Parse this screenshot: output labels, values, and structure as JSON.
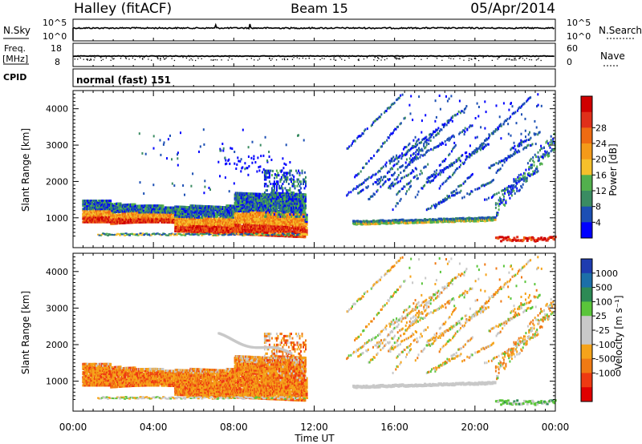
{
  "header": {
    "site": "Halley (fitACF)",
    "beam": "Beam 15",
    "date": "05/Apr/2014"
  },
  "strips": {
    "nsky_label": "N.Sky",
    "nsky_ticks": [
      "10^5",
      "10^0"
    ],
    "nsearch_label": "N.Search",
    "nsearch_ticks": [
      "10^5",
      "10^0"
    ],
    "freq_label": "Freq.",
    "freq_unit": "[MHz]",
    "freq_ticks": [
      "18",
      "8"
    ],
    "nave_label": "Nave",
    "nave_ticks": [
      "60",
      "0"
    ],
    "cpid_label": "CPID",
    "cpid_value": "normal (fast) 151"
  },
  "colors": {
    "power_scale": [
      "#0000ff",
      "#1c4fb4",
      "#3a8c62",
      "#52b04d",
      "#f6c02b",
      "#f49a19",
      "#ef6b12",
      "#e0301a",
      "#d00000"
    ],
    "velocity_scale": [
      "#1e3cb0",
      "#1c6fa8",
      "#2d8a55",
      "#5ac53a",
      "#c8c8c8",
      "#c8c8c8",
      "#f5a31a",
      "#f07a14",
      "#ee3a12",
      "#e00000"
    ]
  },
  "chart_data": [
    {
      "type": "heatmap",
      "title": "Power",
      "ylabel": "Slant Range [km]",
      "xlabel": "Time UT",
      "x_ticks": [
        "00:00",
        "04:00",
        "08:00",
        "12:00",
        "16:00",
        "20:00",
        "00:00"
      ],
      "x_range_hours": [
        0,
        24
      ],
      "ylim": [
        180,
        4500
      ],
      "y_ticks": [
        1000,
        2000,
        3000,
        4000
      ],
      "colorbar_label": "Power [dB]",
      "colorbar_ticks": [
        "4",
        "8",
        "12",
        "16",
        "20",
        "24",
        "28"
      ]
    },
    {
      "type": "heatmap",
      "title": "Velocity",
      "ylabel": "Slant Range [km]",
      "xlabel": "Time UT",
      "x_ticks": [
        "00:00",
        "04:00",
        "08:00",
        "12:00",
        "16:00",
        "20:00",
        "00:00"
      ],
      "x_range_hours": [
        0,
        24
      ],
      "ylim": [
        180,
        4500
      ],
      "y_ticks": [
        1000,
        2000,
        3000,
        4000
      ],
      "colorbar_label": "Velocity [m s⁻¹]",
      "colorbar_ticks": [
        "1000",
        "500",
        "100",
        "25",
        "-25",
        "-100",
        "-500",
        "-1000"
      ]
    }
  ]
}
